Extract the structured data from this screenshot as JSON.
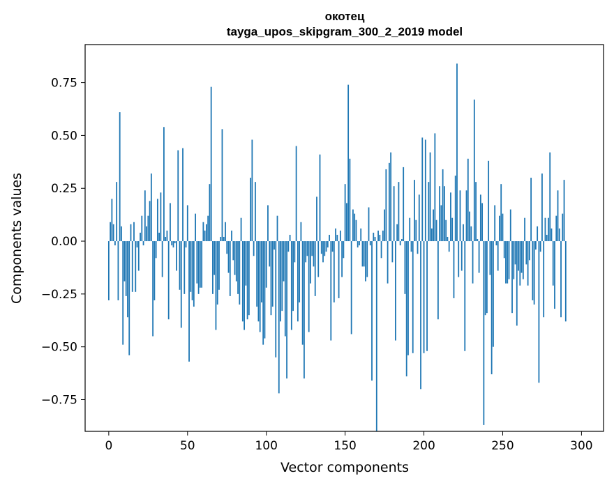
{
  "chart_data": {
    "type": "bar",
    "title": "окотец",
    "subtitle": "tayga_upos_skipgram_300_2_2019 model",
    "xlabel": "Vector components",
    "ylabel": "Components values",
    "xlim": [
      -15,
      314
    ],
    "ylim": [
      -0.9,
      0.93
    ],
    "xticks": [
      0,
      50,
      100,
      150,
      200,
      250,
      300
    ],
    "yticks": [
      -0.75,
      -0.5,
      -0.25,
      0.0,
      0.25,
      0.5,
      0.75
    ],
    "ytick_labels": [
      "−0.75",
      "−0.50",
      "−0.25",
      "0.00",
      "0.25",
      "0.50",
      "0.75"
    ],
    "xtick_labels": [
      "0",
      "50",
      "100",
      "150",
      "200",
      "250",
      "300"
    ],
    "bar_color": "#1f77b4",
    "grid": false,
    "legend": "none",
    "values": [
      -0.28,
      0.09,
      0.2,
      0.08,
      -0.02,
      0.28,
      -0.28,
      0.61,
      0.07,
      -0.49,
      -0.19,
      -0.26,
      -0.36,
      -0.54,
      0.08,
      -0.24,
      0.09,
      -0.24,
      -0.03,
      -0.14,
      0.04,
      0.12,
      -0.02,
      0.24,
      0.07,
      0.12,
      0.19,
      0.32,
      -0.45,
      -0.28,
      -0.08,
      0.2,
      0.04,
      0.23,
      -0.17,
      0.54,
      0.02,
      0.05,
      -0.37,
      0.18,
      -0.02,
      -0.03,
      -0.01,
      -0.14,
      0.43,
      -0.23,
      -0.41,
      0.44,
      -0.25,
      -0.03,
      0.17,
      -0.57,
      -0.24,
      -0.28,
      -0.31,
      0.13,
      -0.2,
      -0.25,
      -0.22,
      -0.22,
      0.09,
      0.05,
      0.08,
      0.12,
      0.27,
      0.73,
      -0.25,
      -0.16,
      -0.42,
      -0.3,
      -0.23,
      0.02,
      0.53,
      0.02,
      0.09,
      -0.06,
      -0.15,
      -0.26,
      0.05,
      -0.09,
      -0.16,
      -0.19,
      -0.25,
      -0.3,
      0.11,
      -0.38,
      -0.42,
      -0.21,
      -0.37,
      -0.35,
      0.3,
      0.48,
      -0.07,
      0.28,
      -0.31,
      -0.38,
      -0.43,
      -0.29,
      -0.49,
      -0.46,
      -0.22,
      0.17,
      -0.12,
      -0.35,
      -0.31,
      -0.04,
      -0.55,
      0.12,
      -0.72,
      -0.38,
      -0.33,
      -0.19,
      -0.45,
      -0.65,
      -0.05,
      0.03,
      -0.42,
      -0.33,
      -0.1,
      0.45,
      -0.38,
      -0.29,
      0.09,
      -0.49,
      -0.65,
      -0.1,
      -0.07,
      -0.43,
      -0.2,
      -0.07,
      -0.12,
      -0.26,
      0.21,
      -0.17,
      0.41,
      -0.06,
      -0.1,
      -0.07,
      -0.05,
      -0.03,
      0.03,
      -0.47,
      -0.05,
      -0.29,
      0.06,
      0.03,
      -0.27,
      0.05,
      -0.17,
      -0.08,
      0.27,
      0.18,
      0.74,
      0.39,
      -0.44,
      0.15,
      0.13,
      0.1,
      -0.03,
      -0.02,
      0.06,
      -0.12,
      -0.12,
      -0.19,
      -0.17,
      0.16,
      -0.02,
      -0.66,
      0.04,
      0.02,
      -0.9,
      0.05,
      0.03,
      -0.08,
      0.05,
      0.15,
      0.34,
      -0.2,
      0.37,
      0.42,
      -0.1,
      0.26,
      -0.47,
      0.08,
      0.28,
      -0.02,
      0.01,
      0.35,
      -0.25,
      -0.64,
      -0.54,
      0.11,
      -0.05,
      -0.53,
      0.29,
      0.1,
      -0.06,
      0.22,
      -0.7,
      0.49,
      -0.53,
      0.48,
      -0.52,
      0.28,
      0.42,
      0.06,
      0.15,
      0.51,
      0.1,
      -0.37,
      0.26,
      0.17,
      0.34,
      0.26,
      0.1,
      0.02,
      -0.05,
      0.23,
      0.11,
      -0.27,
      0.31,
      0.84,
      -0.17,
      0.24,
      -0.14,
      0.08,
      -0.52,
      0.24,
      0.39,
      0.14,
      0.07,
      -0.2,
      0.67,
      0.28,
      0.01,
      -0.15,
      0.22,
      0.18,
      -0.87,
      -0.35,
      -0.34,
      0.38,
      -0.16,
      -0.63,
      -0.5,
      0.17,
      -0.02,
      -0.14,
      0.12,
      0.27,
      0.13,
      -0.08,
      -0.2,
      -0.2,
      -0.18,
      0.15,
      -0.34,
      -0.18,
      -0.11,
      -0.4,
      -0.14,
      -0.21,
      -0.15,
      -0.18,
      0.11,
      -0.11,
      -0.21,
      -0.09,
      0.3,
      -0.28,
      -0.3,
      -0.04,
      0.07,
      -0.67,
      -0.05,
      0.32,
      -0.36,
      0.11,
      0.03,
      0.11,
      0.42,
      0.06,
      -0.21,
      -0.32,
      0.12,
      0.24,
      0.06,
      -0.36,
      0.13,
      0.29,
      -0.38
    ]
  }
}
